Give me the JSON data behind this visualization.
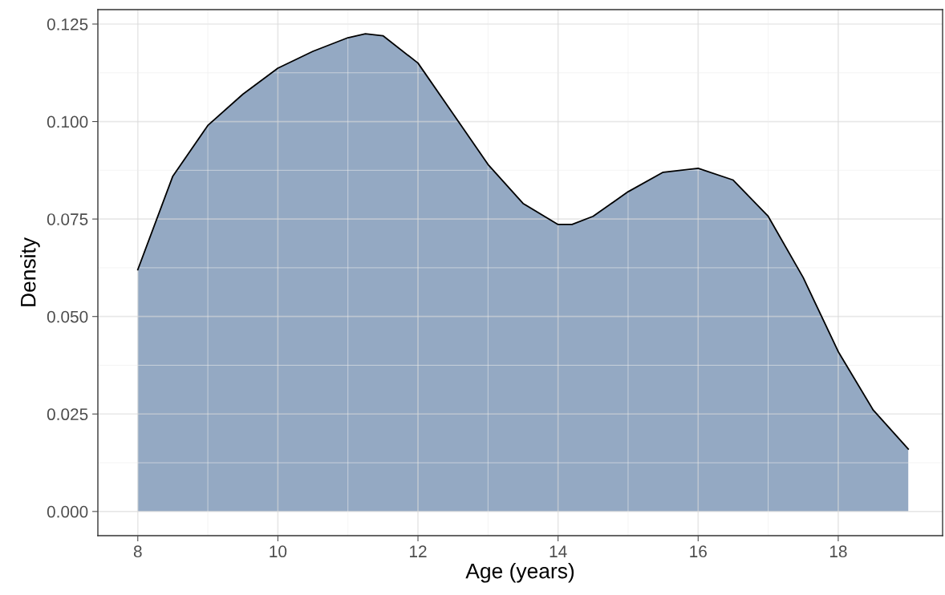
{
  "chart_data": {
    "type": "area",
    "xlabel": "Age (years)",
    "ylabel": "Density",
    "x": [
      8,
      8.5,
      9,
      9.5,
      10,
      10.5,
      11,
      11.25,
      11.5,
      12,
      12.5,
      13,
      13.5,
      14,
      14.2,
      14.5,
      15,
      15.5,
      16,
      16.5,
      17,
      17.5,
      18,
      18.5,
      19
    ],
    "series": [
      {
        "color": "#94a9c3",
        "values": [
          0.062,
          0.086,
          0.099,
          0.107,
          0.1137,
          0.118,
          0.1215,
          0.1225,
          0.122,
          0.115,
          0.102,
          0.089,
          0.079,
          0.0736,
          0.0736,
          0.0757,
          0.082,
          0.087,
          0.088,
          0.085,
          0.0757,
          0.06,
          0.041,
          0.026,
          0.016
        ]
      }
    ],
    "xlim": [
      7.43,
      19.49
    ],
    "ylim": [
      -0.0062,
      0.1287
    ],
    "xticks": [
      8,
      10,
      12,
      14,
      16,
      18
    ],
    "yticks": [
      {
        "value": 0,
        "label": "0.000"
      },
      {
        "value": 0.025,
        "label": "0.025"
      },
      {
        "value": 0.05,
        "label": "0.050"
      },
      {
        "value": 0.075,
        "label": "0.075"
      },
      {
        "value": 0.1,
        "label": "0.100"
      },
      {
        "value": 0.125,
        "label": "0.125"
      }
    ],
    "grid": true
  }
}
